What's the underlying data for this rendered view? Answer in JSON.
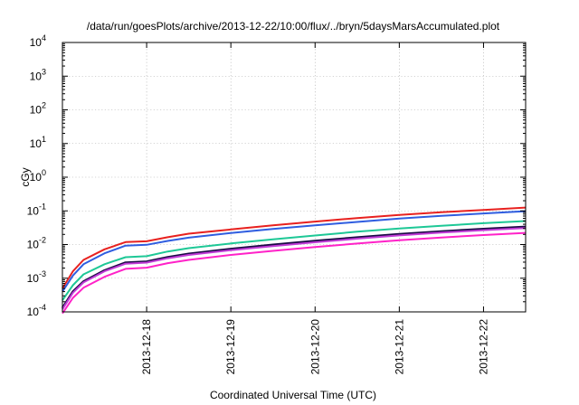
{
  "chart_data": {
    "type": "line",
    "title": "/data/run/goesPlots/archive/2013-12-22/10:00/flux/../bryn/5daysMarsAccumulated.plot",
    "xlabel": "Coordinated Universal Time (UTC)",
    "ylabel": "cGy",
    "x_axis": {
      "type": "time",
      "min": "2013-12-17T00:00",
      "max": "2013-12-22T12:00"
    },
    "x_tick_values": [
      "2013-12-18T00:00",
      "2013-12-19T00:00",
      "2013-12-20T00:00",
      "2013-12-21T00:00",
      "2013-12-22T00:00"
    ],
    "x_tick_labels": [
      "2013-12-18",
      "2013-12-19",
      "2013-12-20",
      "2013-12-21",
      "2013-12-22"
    ],
    "y_scale": "log",
    "ylim": [
      0.0001,
      10000
    ],
    "y_ticks": [
      {
        "value": 0.0001,
        "base": "10",
        "exp": "-4"
      },
      {
        "value": 0.001,
        "base": "10",
        "exp": "-3"
      },
      {
        "value": 0.01,
        "base": "10",
        "exp": "-2"
      },
      {
        "value": 0.1,
        "base": "10",
        "exp": "-1"
      },
      {
        "value": 1,
        "base": "10",
        "exp": "0"
      },
      {
        "value": 10,
        "base": "10",
        "exp": "1"
      },
      {
        "value": 100,
        "base": "10",
        "exp": "2"
      },
      {
        "value": 1000,
        "base": "10",
        "exp": "3"
      },
      {
        "value": 10000,
        "base": "10",
        "exp": "4"
      }
    ],
    "grid": true,
    "legend": "none",
    "x": [
      "2013-12-17T00:00",
      "2013-12-17T03:00",
      "2013-12-17T06:00",
      "2013-12-17T12:00",
      "2013-12-17T18:00",
      "2013-12-18T00:00",
      "2013-12-18T06:00",
      "2013-12-18T12:00",
      "2013-12-19T00:00",
      "2013-12-19T12:00",
      "2013-12-20T00:00",
      "2013-12-20T12:00",
      "2013-12-21T00:00",
      "2013-12-21T12:00",
      "2013-12-22T00:00",
      "2013-12-22T12:00"
    ],
    "series": [
      {
        "color": "#e8211f",
        "values": [
          0.0005,
          0.0016,
          0.0035,
          0.0072,
          0.0118,
          0.0125,
          0.0165,
          0.021,
          0.028,
          0.037,
          0.048,
          0.061,
          0.076,
          0.091,
          0.107,
          0.125
        ]
      },
      {
        "color": "#2f5de0",
        "values": [
          0.0004,
          0.0012,
          0.0026,
          0.0055,
          0.0093,
          0.0098,
          0.0128,
          0.016,
          0.022,
          0.029,
          0.037,
          0.047,
          0.059,
          0.071,
          0.084,
          0.098
        ]
      },
      {
        "color": "#1ec896",
        "values": [
          0.00022,
          0.00062,
          0.0013,
          0.0026,
          0.0042,
          0.0045,
          0.0062,
          0.0078,
          0.0108,
          0.0142,
          0.0185,
          0.024,
          0.03,
          0.036,
          0.043,
          0.05
        ]
      },
      {
        "color": "#1a0a44",
        "values": [
          0.00013,
          0.0004,
          0.0008,
          0.0017,
          0.0029,
          0.0031,
          0.0042,
          0.0053,
          0.0074,
          0.0098,
          0.0127,
          0.0162,
          0.0203,
          0.0245,
          0.029,
          0.0335
        ]
      },
      {
        "color": "#c03bd6",
        "values": [
          0.00012,
          0.00037,
          0.00075,
          0.0016,
          0.0027,
          0.0029,
          0.0039,
          0.0049,
          0.0068,
          0.009,
          0.0117,
          0.0149,
          0.0187,
          0.0226,
          0.0267,
          0.031
        ]
      },
      {
        "color": "#ff22c8",
        "values": [
          9e-05,
          0.00026,
          0.00052,
          0.0011,
          0.0019,
          0.00205,
          0.0028,
          0.0035,
          0.0049,
          0.0065,
          0.0084,
          0.0107,
          0.0134,
          0.0162,
          0.0191,
          0.0222
        ]
      }
    ]
  }
}
